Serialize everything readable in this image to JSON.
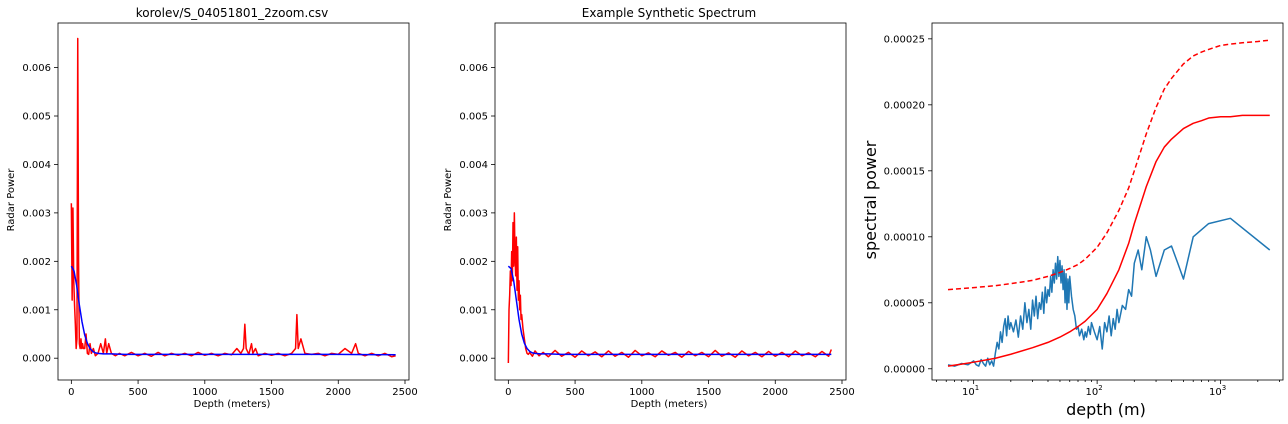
{
  "chart_data": [
    {
      "type": "line",
      "title": "korolev/S_04051801_2zoom.csv",
      "xlabel": "Depth (meters)",
      "ylabel": "Radar Power",
      "xlim": [
        -100,
        2530
      ],
      "ylim": [
        -0.00045,
        0.00692
      ],
      "xticks": [
        0,
        500,
        1000,
        1500,
        2000,
        2500
      ],
      "xtick_labels": [
        "0",
        "500",
        "1000",
        "1500",
        "2000",
        "2500"
      ],
      "yticks": [
        0,
        0.001,
        0.002,
        0.003,
        0.004,
        0.005,
        0.006
      ],
      "ytick_labels": [
        "0.000",
        "0.001",
        "0.002",
        "0.003",
        "0.004",
        "0.005",
        "0.006"
      ],
      "series": [
        {
          "color": "#ff0000",
          "x": [
            0,
            6,
            12,
            18,
            24,
            30,
            36,
            42,
            48,
            54,
            60,
            66,
            72,
            78,
            84,
            90,
            100,
            110,
            120,
            130,
            140,
            150,
            165,
            180,
            200,
            220,
            240,
            255,
            265,
            280,
            300,
            330,
            360,
            400,
            450,
            500,
            550,
            600,
            650,
            700,
            750,
            800,
            850,
            900,
            950,
            1000,
            1050,
            1100,
            1150,
            1200,
            1240,
            1270,
            1290,
            1300,
            1310,
            1330,
            1350,
            1360,
            1380,
            1400,
            1450,
            1500,
            1550,
            1600,
            1650,
            1680,
            1690,
            1700,
            1720,
            1750,
            1800,
            1850,
            1900,
            1950,
            2000,
            2050,
            2100,
            2130,
            2150,
            2200,
            2250,
            2300,
            2350,
            2400,
            2430
          ],
          "y": [
            0.0032,
            0.0012,
            0.0031,
            0.0016,
            0.0011,
            0.0007,
            0.0002,
            0.0004,
            0.0066,
            0.002,
            0.0003,
            0.0002,
            0.0004,
            0.0002,
            0.0003,
            0.0002,
            0.0002,
            0.0005,
            0.0001,
            8e-05,
            0.0003,
            0.0001,
            0.0002,
            5e-05,
            0.0001,
            0.0003,
            0.0001,
            0.0004,
            0.0001,
            0.0003,
            0.0001,
            5e-05,
            0.0001,
            5e-05,
            0.00012,
            5e-05,
            0.0001,
            4e-05,
            0.00012,
            5e-05,
            0.0001,
            6e-05,
            0.0001,
            5e-05,
            0.00012,
            6e-05,
            0.0001,
            5e-05,
            0.0001,
            7e-05,
            0.0002,
            0.0001,
            0.0002,
            0.0007,
            0.0002,
            8e-05,
            0.0003,
            0.0001,
            0.0002,
            5e-05,
            0.0001,
            6e-05,
            0.0001,
            5e-05,
            0.0001,
            0.0002,
            0.0009,
            0.0002,
            0.0004,
            0.0001,
            8e-05,
            0.0001,
            5e-05,
            0.0001,
            8e-05,
            0.0002,
            0.0001,
            0.0003,
            0.0001,
            5e-05,
            0.0001,
            5e-05,
            0.0001,
            3e-05,
            5e-05
          ]
        },
        {
          "color": "#0000ff",
          "x": [
            0,
            20,
            40,
            60,
            80,
            100,
            120,
            140,
            160,
            180,
            200,
            240,
            300,
            400,
            600,
            1000,
            1500,
            2000,
            2430
          ],
          "y": [
            0.0019,
            0.0018,
            0.0015,
            0.0011,
            0.00075,
            0.00048,
            0.00031,
            0.0002,
            0.00014,
            0.00011,
            0.0001,
            9e-05,
            9e-05,
            8e-05,
            8e-05,
            8e-05,
            8e-05,
            8e-05,
            7e-05
          ]
        }
      ]
    },
    {
      "type": "line",
      "title": "Example Synthetic Spectrum",
      "xlabel": "Depth (meters)",
      "ylabel": "Radar Power",
      "xlim": [
        -100,
        2530
      ],
      "ylim": [
        -0.00045,
        0.00692
      ],
      "xticks": [
        0,
        500,
        1000,
        1500,
        2000,
        2500
      ],
      "xtick_labels": [
        "0",
        "500",
        "1000",
        "1500",
        "2000",
        "2500"
      ],
      "yticks": [
        0,
        0.001,
        0.002,
        0.003,
        0.004,
        0.005,
        0.006
      ],
      "ytick_labels": [
        "0.000",
        "0.001",
        "0.002",
        "0.003",
        "0.004",
        "0.005",
        "0.006"
      ],
      "series": [
        {
          "color": "#ff0000",
          "x": [
            0,
            5,
            10,
            15,
            20,
            25,
            30,
            35,
            40,
            45,
            50,
            55,
            60,
            65,
            70,
            75,
            80,
            85,
            90,
            95,
            100,
            110,
            120,
            130,
            140,
            150,
            160,
            180,
            200,
            230,
            260,
            300,
            350,
            400,
            450,
            500,
            550,
            600,
            650,
            700,
            750,
            800,
            850,
            900,
            950,
            1000,
            1050,
            1100,
            1150,
            1200,
            1250,
            1300,
            1350,
            1400,
            1450,
            1500,
            1550,
            1600,
            1650,
            1700,
            1750,
            1800,
            1850,
            1900,
            1950,
            2000,
            2050,
            2100,
            2150,
            2200,
            2250,
            2300,
            2350,
            2400,
            2420
          ],
          "y": [
            -0.0001,
            0.001,
            0.0013,
            0.0018,
            0.0015,
            0.0022,
            0.0016,
            0.0028,
            0.0019,
            0.003,
            0.0021,
            0.0017,
            0.0025,
            0.0014,
            0.0023,
            0.0012,
            0.0016,
            0.001,
            0.0013,
            0.0008,
            0.0009,
            0.0006,
            0.0004,
            0.0002,
            0.0001,
            8e-05,
            0.00012,
            4e-05,
            0.00015,
            5e-05,
            0.00012,
            3e-05,
            0.00016,
            4e-05,
            0.00012,
            2e-05,
            0.00015,
            5e-05,
            0.00013,
            3e-05,
            0.00015,
            4e-05,
            0.00012,
            2e-05,
            0.00016,
            5e-05,
            0.00011,
            3e-05,
            0.00015,
            6e-05,
            0.00012,
            2e-05,
            0.00014,
            5e-05,
            0.00012,
            3e-05,
            0.00016,
            4e-05,
            0.00011,
            2e-05,
            0.00015,
            5e-05,
            0.00012,
            3e-05,
            0.00014,
            4e-05,
            0.00012,
            3e-05,
            0.00015,
            5e-05,
            0.00011,
            3e-05,
            0.00014,
            4e-05,
            0.00018
          ]
        },
        {
          "color": "#0000ff",
          "x": [
            0,
            20,
            40,
            60,
            80,
            100,
            120,
            140,
            160,
            180,
            200,
            240,
            300,
            400,
            600,
            1000,
            1500,
            2000,
            2420
          ],
          "y": [
            0.0019,
            0.00185,
            0.0016,
            0.0012,
            0.0008,
            0.0005,
            0.00031,
            0.0002,
            0.00014,
            0.00011,
            0.0001,
            9e-05,
            9e-05,
            8e-05,
            8e-05,
            8e-05,
            8e-05,
            8e-05,
            8e-05
          ]
        }
      ]
    },
    {
      "type": "line",
      "title": "",
      "xlabel": "depth (m)",
      "ylabel": "spectral power",
      "xscale": "log",
      "xlim": [
        4.6,
        3200
      ],
      "ylim": [
        -8.5e-06,
        0.000262
      ],
      "xticks": [
        10,
        100,
        1000
      ],
      "xtick_labels": [
        "10",
        "10",
        "10"
      ],
      "xtick_exponents": [
        "1",
        "2",
        "3"
      ],
      "yticks": [
        0,
        5e-05,
        0.0001,
        0.00015,
        0.0002,
        0.00025
      ],
      "ytick_labels": [
        "0.00000",
        "0.00005",
        "0.00010",
        "0.00015",
        "0.00020",
        "0.00025"
      ],
      "series": [
        {
          "color": "#1f77b4",
          "dash": false,
          "x": [
            6.2,
            7,
            8,
            9,
            10,
            10.5,
            11,
            11.5,
            12,
            12.5,
            13,
            13.5,
            14,
            14.5,
            15,
            15.5,
            16,
            16.5,
            17,
            17.5,
            18,
            18.5,
            19,
            19.5,
            20,
            21,
            22,
            23,
            24,
            25,
            26,
            27,
            28,
            29,
            30,
            31,
            32,
            33,
            34,
            35,
            36,
            37,
            38,
            39,
            40,
            41,
            42,
            43,
            44,
            45,
            46,
            47,
            48,
            49,
            50,
            51,
            52,
            53,
            54,
            55,
            56,
            57,
            58,
            59,
            60,
            62,
            64,
            66,
            68,
            70,
            72,
            75,
            78,
            80,
            82,
            85,
            88,
            90,
            95,
            100,
            105,
            110,
            115,
            120,
            125,
            130,
            135,
            140,
            145,
            150,
            160,
            170,
            180,
            190,
            200,
            215,
            230,
            250,
            270,
            300,
            350,
            400,
            450,
            500,
            600,
            800,
            1200,
            2500
          ],
          "y": [
            3e-06,
            2e-06,
            4e-06,
            3e-06,
            6e-06,
            3e-06,
            2e-06,
            7e-06,
            4e-06,
            2e-06,
            8e-06,
            3e-06,
            6e-06,
            2e-06,
            1.2e-05,
            2e-05,
            1.5e-05,
            2.8e-05,
            2e-05,
            3.2e-05,
            3.8e-05,
            2.5e-05,
            4e-05,
            3e-05,
            3.5e-05,
            2.8e-05,
            3.7e-05,
            2.4e-05,
            4e-05,
            3e-05,
            5e-05,
            3.5e-05,
            4.5e-05,
            3e-05,
            5.2e-05,
            4e-05,
            5.5e-05,
            3.8e-05,
            5e-05,
            4.5e-05,
            5.8e-05,
            4.2e-05,
            6.2e-05,
            5e-05,
            6e-05,
            5.5e-05,
            7e-05,
            5.8e-05,
            7.5e-05,
            6.5e-05,
            8e-05,
            6.8e-05,
            8.5e-05,
            7e-05,
            8.2e-05,
            6.5e-05,
            7.8e-05,
            6e-05,
            7.5e-05,
            5e-05,
            7.2e-05,
            4.5e-05,
            6.8e-05,
            5e-05,
            7e-05,
            5.5e-05,
            4.5e-05,
            4e-05,
            3e-05,
            3.2e-05,
            2.5e-05,
            3e-05,
            2.2e-05,
            2.8e-05,
            2.4e-05,
            3.2e-05,
            2.6e-05,
            3.5e-05,
            2.8e-05,
            2.2e-05,
            3.2e-05,
            1.5e-05,
            3.5e-05,
            2.8e-05,
            4e-05,
            2.5e-05,
            3.8e-05,
            3e-05,
            4.5e-05,
            3.5e-05,
            4.8e-05,
            4.5e-05,
            6e-05,
            5.5e-05,
            8e-05,
            9e-05,
            7.5e-05,
            0.0001,
            9e-05,
            7e-05,
            9e-05,
            9.3e-05,
            8e-05,
            6.8e-05,
            0.0001,
            0.00011,
            0.000114,
            9e-05
          ]
        },
        {
          "color": "#ff0000",
          "dash": false,
          "x": [
            6.2,
            8,
            10,
            15,
            20,
            30,
            40,
            50,
            60,
            70,
            80,
            100,
            120,
            150,
            180,
            200,
            250,
            300,
            350,
            400,
            500,
            600,
            700,
            800,
            1000,
            1200,
            1500,
            2000,
            2500
          ],
          "y": [
            2e-06,
            3.5e-06,
            5e-06,
            8e-06,
            1.1e-05,
            1.6e-05,
            2e-05,
            2.4e-05,
            2.8e-05,
            3.2e-05,
            3.6e-05,
            4.5e-05,
            5.7e-05,
            7.5e-05,
            9.5e-05,
            0.00011,
            0.000138,
            0.000157,
            0.000168,
            0.000174,
            0.000182,
            0.000186,
            0.000188,
            0.00019,
            0.000191,
            0.000191,
            0.000192,
            0.000192,
            0.000192
          ]
        },
        {
          "color": "#ff0000",
          "dash": true,
          "x": [
            6.2,
            8,
            10,
            15,
            20,
            30,
            40,
            50,
            60,
            70,
            80,
            100,
            120,
            150,
            180,
            200,
            250,
            300,
            350,
            400,
            500,
            600,
            700,
            800,
            1000,
            1200,
            1500,
            2000,
            2500
          ],
          "y": [
            6e-05,
            6.08e-05,
            6.15e-05,
            6.3e-05,
            6.45e-05,
            6.7e-05,
            7e-05,
            7.3e-05,
            7.6e-05,
            7.9e-05,
            8.3e-05,
            9.2e-05,
            0.000103,
            0.00012,
            0.000137,
            0.00015,
            0.000178,
            0.000198,
            0.000212,
            0.00022,
            0.000231,
            0.000237,
            0.00024,
            0.000242,
            0.000245,
            0.000246,
            0.000247,
            0.000248,
            0.000249
          ]
        }
      ]
    }
  ]
}
